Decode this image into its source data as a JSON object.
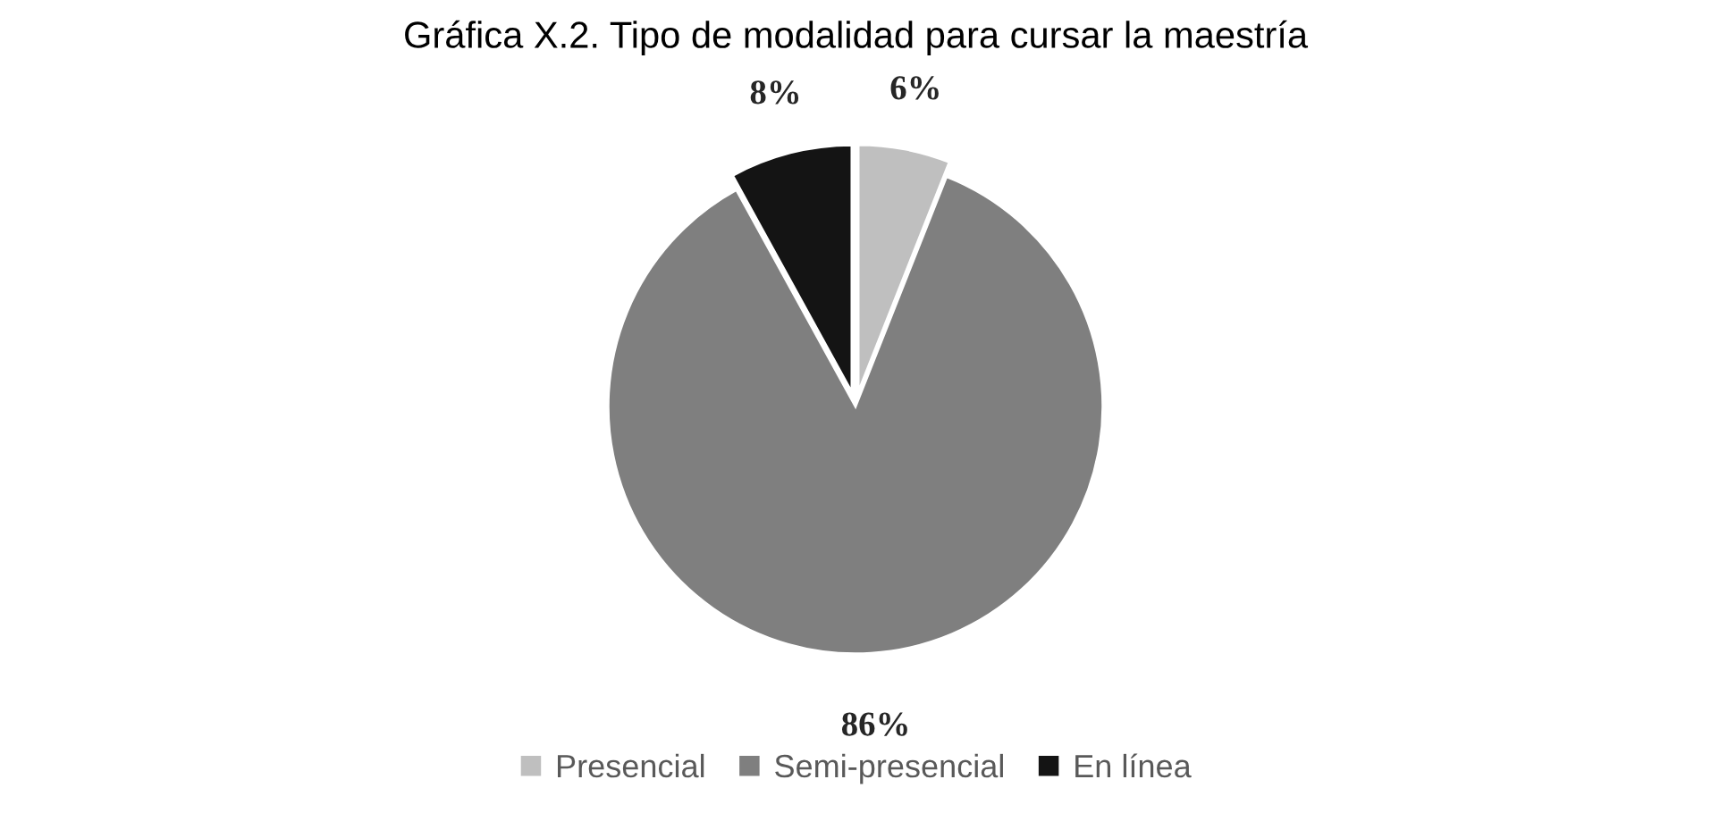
{
  "chart_data": {
    "type": "pie",
    "title": "Gráfica X.2. Tipo de modalidad para cursar la maestría",
    "categories": [
      "Presencial",
      "Semi-presencial",
      "En línea"
    ],
    "values": [
      6,
      86,
      8
    ],
    "colors": [
      "#bfbfbf",
      "#7f7f7f",
      "#141414"
    ],
    "value_labels": [
      "6%",
      "86%",
      "8%"
    ],
    "legend": "bottom"
  }
}
